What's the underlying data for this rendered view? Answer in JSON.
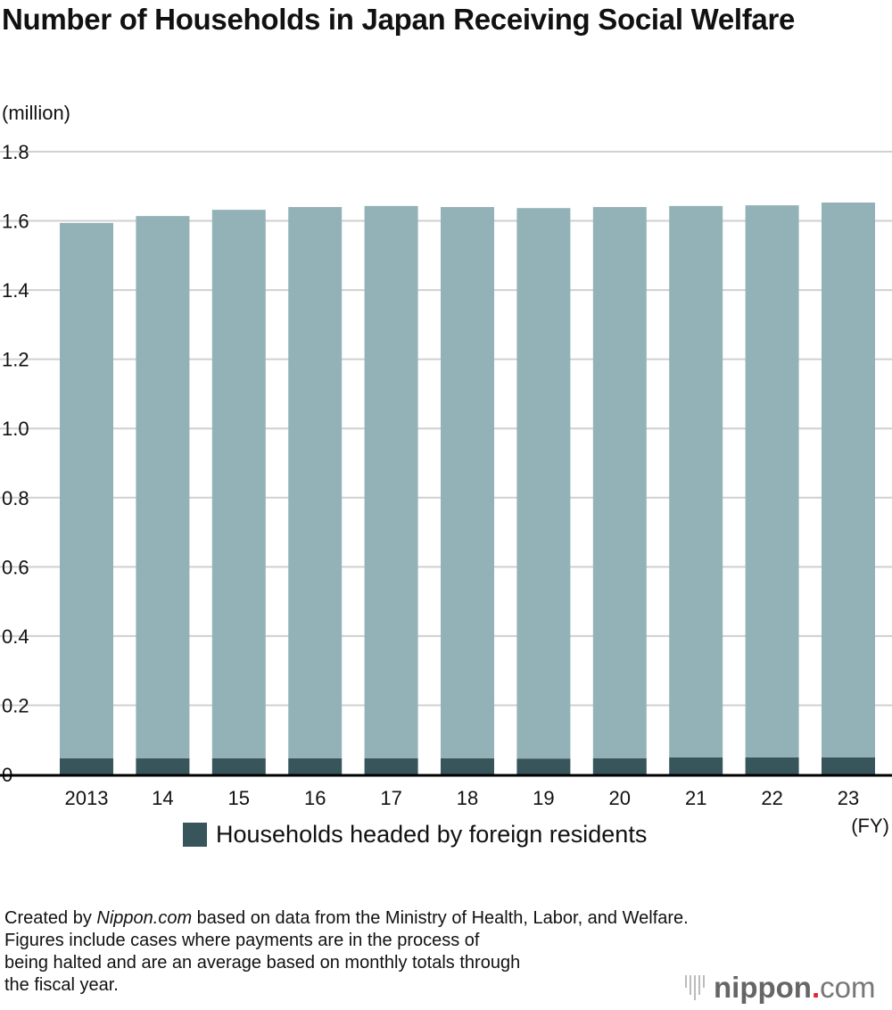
{
  "chart_data": {
    "type": "bar",
    "stacked": true,
    "title": "Number of Households in Japan Receiving Social Welfare",
    "ylabel": "(million)",
    "xlabel": "(FY)",
    "categories": [
      "2013",
      "14",
      "15",
      "16",
      "17",
      "18",
      "19",
      "20",
      "21",
      "22",
      "23"
    ],
    "series": [
      {
        "name": "Households headed by foreign residents",
        "color": "#37555b",
        "values": [
          0.047,
          0.047,
          0.047,
          0.047,
          0.047,
          0.047,
          0.046,
          0.047,
          0.049,
          0.049,
          0.049
        ]
      },
      {
        "color": "#93b2b7",
        "values": [
          1.547,
          1.567,
          1.585,
          1.593,
          1.596,
          1.593,
          1.591,
          1.593,
          1.594,
          1.596,
          1.604
        ]
      }
    ],
    "totals": [
      1.594,
      1.614,
      1.632,
      1.64,
      1.643,
      1.64,
      1.637,
      1.64,
      1.643,
      1.645,
      1.653
    ],
    "ylim": [
      0,
      1.8
    ],
    "yticks": [
      "0",
      "0.2",
      "0.4",
      "0.6",
      "0.8",
      "1.0",
      "1.2",
      "1.4",
      "1.6",
      "1.8"
    ],
    "grid": true,
    "legend": "bottom"
  },
  "note": {
    "prefix": "Created by ",
    "brand": "Nippon.com",
    "rest": " based on data from the Ministry of Health, Labor, and Welfare.",
    "line2": "Figures include cases where payments are in the process of",
    "line3": "being halted and are an average based on monthly totals through",
    "line4": "the fiscal year."
  },
  "logo": {
    "main": "nippon",
    "dot": ".",
    "suffix": "com"
  }
}
